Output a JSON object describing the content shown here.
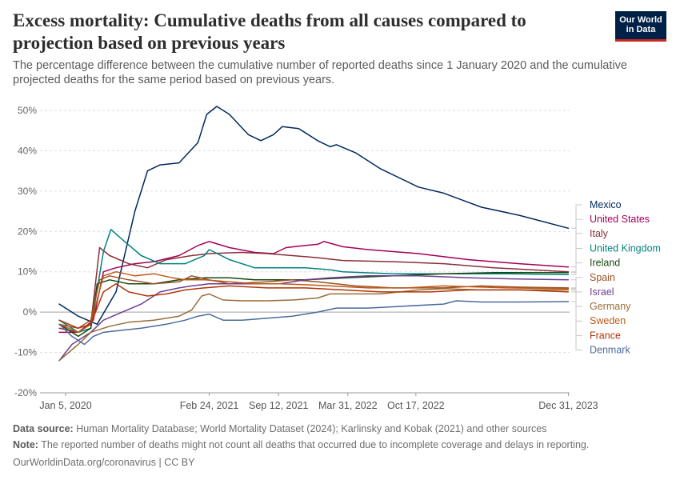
{
  "header": {
    "title": "Excess mortality: Cumulative deaths from all causes compared to projection based on previous years",
    "subtitle": "The percentage difference between the cumulative number of reported deaths since 1 January 2020 and the cumulative projected deaths for the same period based on previous years.",
    "logo_line1": "Our World",
    "logo_line2": "in Data"
  },
  "footer": {
    "source_label": "Data source:",
    "source_text": "Human Mortality Database; World Mortality Dataset (2024); Karlinsky and Kobak (2021) and other sources",
    "note_label": "Note:",
    "note_text": "The reported number of deaths might not count all deaths that occurred due to incomplete coverage and delays in reporting.",
    "credit": "OurWorldinData.org/coronavirus | CC BY"
  },
  "chart_data": {
    "type": "line",
    "title": "Excess mortality: Cumulative deaths from all causes compared to projection based on previous years",
    "xlabel": "",
    "ylabel": "",
    "x_unit": "years since Jan 5, 2020",
    "xlim": [
      0,
      4.0
    ],
    "ylim": [
      -20,
      50
    ],
    "yticks": [
      -20,
      -10,
      0,
      10,
      20,
      30,
      40,
      50
    ],
    "ytick_labels": [
      "-20%",
      "-10%",
      "0%",
      "10%",
      "20%",
      "30%",
      "40%",
      "50%"
    ],
    "xticks": [
      0,
      1.14,
      1.69,
      2.24,
      2.78,
      3.99
    ],
    "xtick_labels": [
      "Jan 5, 2020",
      "Feb 24, 2021",
      "Sep 12, 2021",
      "Mar 31, 2022",
      "Oct 17, 2022",
      "Dec 31, 2023"
    ],
    "grid": true,
    "legend": "right (direct labels)",
    "series": [
      {
        "name": "Mexico",
        "color": "#00295b",
        "label_y": 26.6,
        "points": [
          [
            -0.05,
            2
          ],
          [
            0.1,
            -1
          ],
          [
            0.25,
            -3
          ],
          [
            0.4,
            5
          ],
          [
            0.55,
            25
          ],
          [
            0.65,
            35
          ],
          [
            0.75,
            36.5
          ],
          [
            0.9,
            37
          ],
          [
            1.05,
            42
          ],
          [
            1.12,
            49
          ],
          [
            1.2,
            51
          ],
          [
            1.3,
            49
          ],
          [
            1.45,
            44
          ],
          [
            1.55,
            42.5
          ],
          [
            1.65,
            44
          ],
          [
            1.72,
            46
          ],
          [
            1.85,
            45.5
          ],
          [
            2.0,
            42.5
          ],
          [
            2.1,
            41
          ],
          [
            2.15,
            41.5
          ],
          [
            2.3,
            39.5
          ],
          [
            2.5,
            35.5
          ],
          [
            2.8,
            31
          ],
          [
            3.0,
            29.5
          ],
          [
            3.3,
            26
          ],
          [
            3.6,
            24
          ],
          [
            3.99,
            20.8
          ]
        ]
      },
      {
        "name": "United States",
        "color": "#a2005a",
        "label_y": 23.0,
        "points": [
          [
            -0.05,
            -5
          ],
          [
            0.1,
            -5
          ],
          [
            0.22,
            -2
          ],
          [
            0.3,
            10
          ],
          [
            0.4,
            11
          ],
          [
            0.55,
            12
          ],
          [
            0.7,
            12.5
          ],
          [
            0.9,
            14
          ],
          [
            1.05,
            16.5
          ],
          [
            1.14,
            17.5
          ],
          [
            1.3,
            16
          ],
          [
            1.5,
            14.8
          ],
          [
            1.65,
            14.5
          ],
          [
            1.75,
            16
          ],
          [
            1.9,
            16.5
          ],
          [
            2.0,
            16.8
          ],
          [
            2.05,
            17.5
          ],
          [
            2.2,
            16.2
          ],
          [
            2.4,
            15.5
          ],
          [
            2.8,
            14.5
          ],
          [
            3.2,
            13
          ],
          [
            3.6,
            12
          ],
          [
            3.99,
            11.2
          ]
        ]
      },
      {
        "name": "Italy",
        "color": "#883039",
        "label_y": 19.5,
        "points": [
          [
            -0.05,
            -4
          ],
          [
            0.1,
            -5
          ],
          [
            0.2,
            -3
          ],
          [
            0.27,
            16
          ],
          [
            0.35,
            14
          ],
          [
            0.5,
            12
          ],
          [
            0.65,
            11
          ],
          [
            0.8,
            13
          ],
          [
            1.0,
            14
          ],
          [
            1.14,
            14.5
          ],
          [
            1.4,
            14.8
          ],
          [
            1.6,
            14.5
          ],
          [
            1.8,
            14
          ],
          [
            2.0,
            13.5
          ],
          [
            2.2,
            12.8
          ],
          [
            2.6,
            12.5
          ],
          [
            3.0,
            12
          ],
          [
            3.4,
            11
          ],
          [
            3.99,
            10
          ]
        ]
      },
      {
        "name": "United Kingdom",
        "color": "#00847e",
        "label_y": 15.8,
        "points": [
          [
            -0.05,
            -2
          ],
          [
            0.1,
            -5
          ],
          [
            0.2,
            -4
          ],
          [
            0.3,
            15
          ],
          [
            0.36,
            20.5
          ],
          [
            0.45,
            18
          ],
          [
            0.6,
            14
          ],
          [
            0.75,
            12
          ],
          [
            0.95,
            12
          ],
          [
            1.1,
            14
          ],
          [
            1.14,
            15.5
          ],
          [
            1.3,
            13
          ],
          [
            1.5,
            11
          ],
          [
            1.7,
            11
          ],
          [
            1.9,
            11
          ],
          [
            2.1,
            10.5
          ],
          [
            2.2,
            10
          ],
          [
            2.6,
            9.5
          ],
          [
            3.0,
            9.5
          ],
          [
            3.5,
            9.5
          ],
          [
            3.99,
            9.3
          ]
        ]
      },
      {
        "name": "Ireland",
        "color": "#18470f",
        "label_y": 12.2,
        "points": [
          [
            -0.05,
            -3
          ],
          [
            0.1,
            -6
          ],
          [
            0.2,
            -4
          ],
          [
            0.25,
            7
          ],
          [
            0.35,
            8
          ],
          [
            0.5,
            7
          ],
          [
            0.7,
            7
          ],
          [
            0.9,
            8
          ],
          [
            1.1,
            8.5
          ],
          [
            1.3,
            8.5
          ],
          [
            1.5,
            8
          ],
          [
            1.7,
            8
          ],
          [
            1.9,
            8
          ],
          [
            2.1,
            8.3
          ],
          [
            2.3,
            8.6
          ],
          [
            2.6,
            9
          ],
          [
            3.0,
            9.5
          ],
          [
            3.4,
            9.8
          ],
          [
            3.99,
            9.8
          ]
        ]
      },
      {
        "name": "Spain",
        "color": "#9a5129",
        "label_y": 8.6,
        "points": [
          [
            -0.05,
            -3
          ],
          [
            0.1,
            -4
          ],
          [
            0.2,
            -2
          ],
          [
            0.27,
            8
          ],
          [
            0.35,
            9
          ],
          [
            0.5,
            8
          ],
          [
            0.7,
            7
          ],
          [
            0.9,
            7.5
          ],
          [
            1.0,
            9
          ],
          [
            1.14,
            8
          ],
          [
            1.3,
            7
          ],
          [
            1.6,
            7.5
          ],
          [
            1.8,
            8
          ],
          [
            2.0,
            7.5
          ],
          [
            2.3,
            6.5
          ],
          [
            2.6,
            6
          ],
          [
            3.0,
            6
          ],
          [
            3.3,
            6.5
          ],
          [
            3.6,
            6.2
          ],
          [
            3.99,
            6
          ]
        ]
      },
      {
        "name": "Israel",
        "color": "#6d3e91",
        "label_y": 5.0,
        "points": [
          [
            -0.05,
            -12
          ],
          [
            0.05,
            -8
          ],
          [
            0.2,
            -5
          ],
          [
            0.3,
            -2
          ],
          [
            0.45,
            0
          ],
          [
            0.6,
            2
          ],
          [
            0.75,
            5
          ],
          [
            0.9,
            6
          ],
          [
            1.0,
            6.5
          ],
          [
            1.14,
            7
          ],
          [
            1.3,
            7
          ],
          [
            1.5,
            7
          ],
          [
            1.7,
            7
          ],
          [
            1.9,
            8
          ],
          [
            2.1,
            8.5
          ],
          [
            2.4,
            9
          ],
          [
            2.8,
            9
          ],
          [
            3.2,
            8.5
          ],
          [
            3.6,
            8.2
          ],
          [
            3.99,
            8
          ]
        ]
      },
      {
        "name": "Germany",
        "color": "#996d39",
        "label_y": 1.4,
        "points": [
          [
            -0.05,
            -12
          ],
          [
            0.1,
            -8
          ],
          [
            0.2,
            -5
          ],
          [
            0.35,
            -3.5
          ],
          [
            0.5,
            -2.5
          ],
          [
            0.7,
            -2
          ],
          [
            0.9,
            -1
          ],
          [
            1.0,
            0.5
          ],
          [
            1.08,
            4
          ],
          [
            1.14,
            4.5
          ],
          [
            1.25,
            3
          ],
          [
            1.4,
            2.8
          ],
          [
            1.6,
            2.8
          ],
          [
            1.8,
            3
          ],
          [
            2.0,
            3.5
          ],
          [
            2.1,
            4.5
          ],
          [
            2.3,
            4.5
          ],
          [
            2.5,
            4.5
          ],
          [
            2.8,
            5.5
          ],
          [
            3.0,
            5.8
          ],
          [
            3.3,
            5.5
          ],
          [
            3.6,
            5.5
          ],
          [
            3.99,
            5.5
          ]
        ]
      },
      {
        "name": "Sweden",
        "color": "#be5915",
        "label_y": -2.2,
        "points": [
          [
            -0.05,
            -3
          ],
          [
            0.1,
            -5
          ],
          [
            0.2,
            -3
          ],
          [
            0.3,
            9
          ],
          [
            0.4,
            10
          ],
          [
            0.55,
            9
          ],
          [
            0.7,
            9.5
          ],
          [
            0.85,
            8.5
          ],
          [
            0.95,
            8
          ],
          [
            1.1,
            8
          ],
          [
            1.3,
            7.5
          ],
          [
            1.5,
            7
          ],
          [
            1.7,
            7
          ],
          [
            1.9,
            6.8
          ],
          [
            2.1,
            6.5
          ],
          [
            2.4,
            6
          ],
          [
            2.7,
            6
          ],
          [
            3.0,
            6.5
          ],
          [
            3.5,
            6
          ],
          [
            3.99,
            5.8
          ]
        ]
      },
      {
        "name": "France",
        "color": "#b13507",
        "label_y": -5.8,
        "points": [
          [
            -0.05,
            -2
          ],
          [
            0.1,
            -4
          ],
          [
            0.2,
            -3
          ],
          [
            0.3,
            5
          ],
          [
            0.4,
            7
          ],
          [
            0.5,
            5
          ],
          [
            0.65,
            4
          ],
          [
            0.8,
            4.5
          ],
          [
            0.95,
            5.5
          ],
          [
            1.1,
            6
          ],
          [
            1.3,
            6.5
          ],
          [
            1.6,
            6
          ],
          [
            1.9,
            6
          ],
          [
            2.2,
            5.5
          ],
          [
            2.5,
            5
          ],
          [
            2.9,
            5
          ],
          [
            3.2,
            5.5
          ],
          [
            3.6,
            5.5
          ],
          [
            3.99,
            5
          ]
        ]
      },
      {
        "name": "Denmark",
        "color": "#4c6a9c",
        "label_y": -9.4,
        "points": [
          [
            -0.05,
            -3
          ],
          [
            0.05,
            -6
          ],
          [
            0.15,
            -8
          ],
          [
            0.22,
            -6
          ],
          [
            0.3,
            -5
          ],
          [
            0.45,
            -4.5
          ],
          [
            0.6,
            -4
          ],
          [
            0.8,
            -3
          ],
          [
            0.95,
            -2
          ],
          [
            1.05,
            -1
          ],
          [
            1.14,
            -0.5
          ],
          [
            1.25,
            -2
          ],
          [
            1.4,
            -2
          ],
          [
            1.6,
            -1.5
          ],
          [
            1.8,
            -1
          ],
          [
            2.0,
            0
          ],
          [
            2.15,
            1
          ],
          [
            2.4,
            1
          ],
          [
            2.7,
            1.5
          ],
          [
            3.0,
            2
          ],
          [
            3.1,
            2.8
          ],
          [
            3.3,
            2.5
          ],
          [
            3.6,
            2.5
          ],
          [
            3.99,
            2.6
          ]
        ]
      }
    ]
  }
}
